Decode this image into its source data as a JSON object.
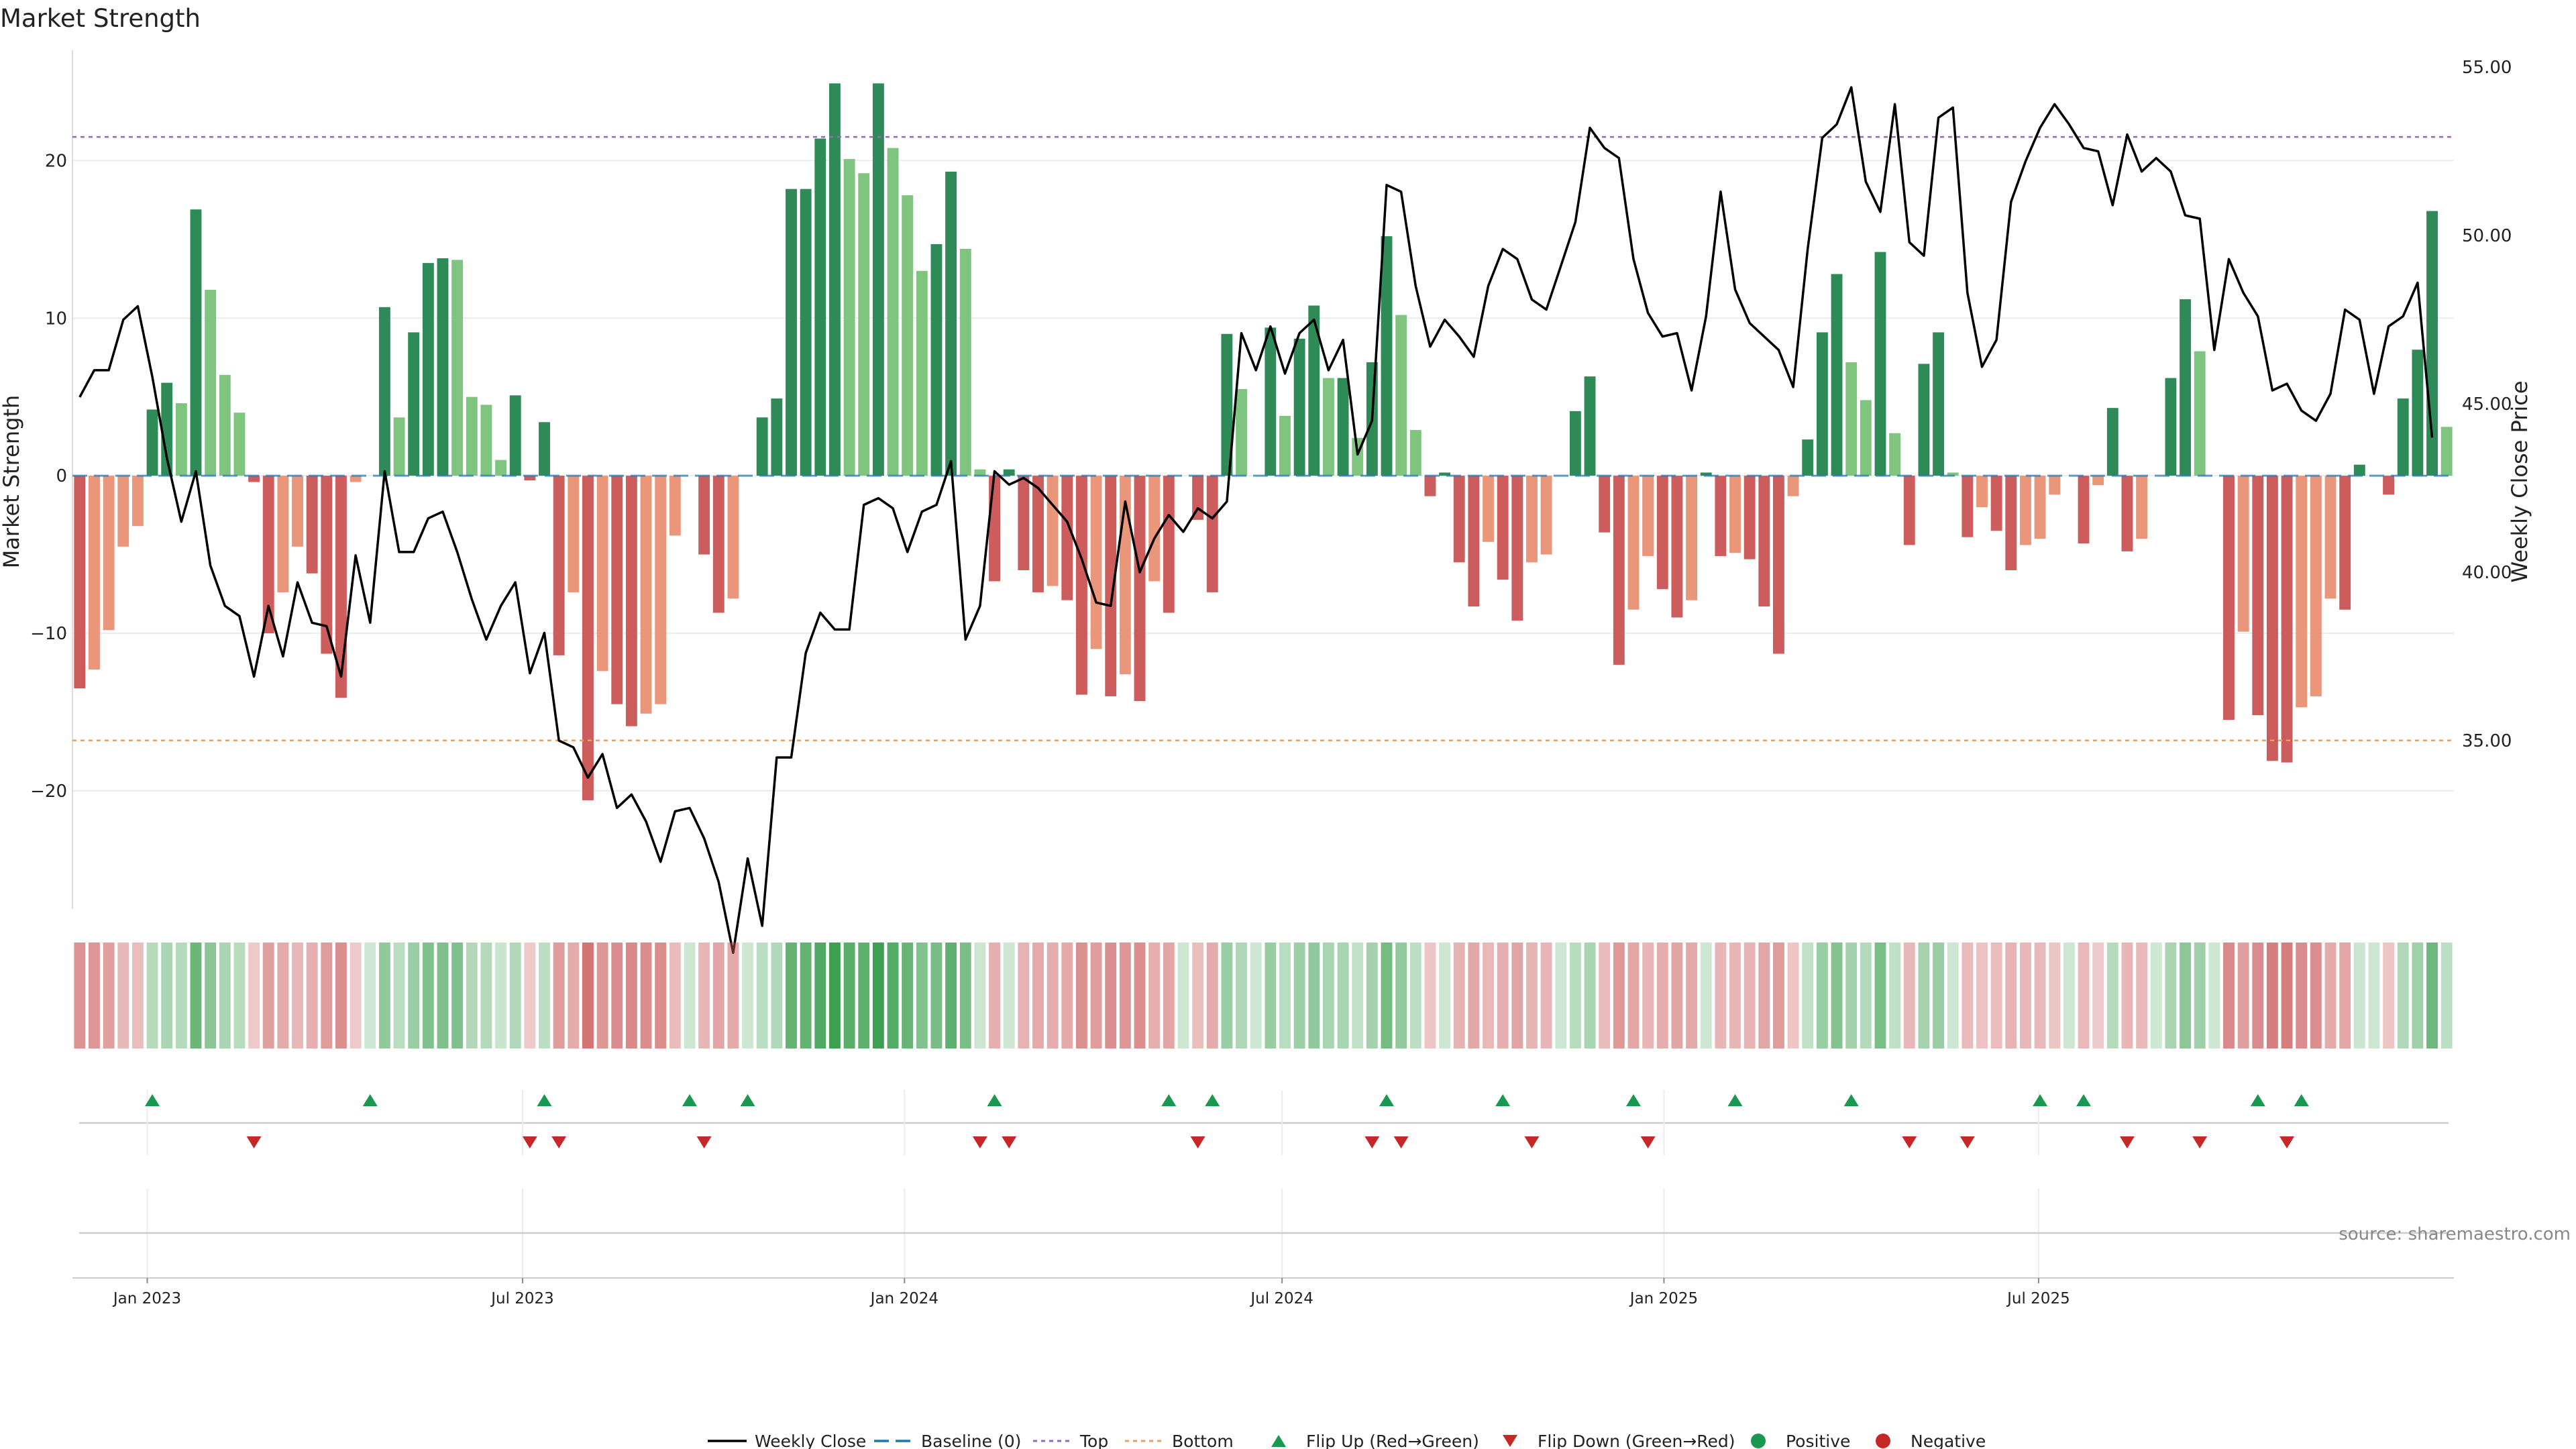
{
  "title": "Market Strength",
  "source": "source: sharemaestro.com",
  "colors": {
    "strong_green": "#2e8b57",
    "light_green": "#7fc47f",
    "strong_red": "#cd5c5c",
    "light_red": "#e9967a",
    "top_line": "#9467bd",
    "bottom_line": "#e8a15e",
    "baseline": "#1f77b4",
    "flip_up": "#1a9850",
    "flip_down": "#c62828",
    "close_line": "#000000"
  },
  "legend": [
    {
      "key": "weekly-close",
      "label": "Weekly Close"
    },
    {
      "key": "baseline",
      "label": "Baseline (0)"
    },
    {
      "key": "top",
      "label": "Top"
    },
    {
      "key": "bottom",
      "label": "Bottom"
    },
    {
      "key": "flip-up",
      "label": "Flip Up (Red→Green)"
    },
    {
      "key": "flip-down",
      "label": "Flip Down (Green→Red)"
    },
    {
      "key": "positive",
      "label": "Positive"
    },
    {
      "key": "negative",
      "label": "Negative"
    }
  ],
  "chart_data": {
    "type": "bar",
    "title": "Market Strength",
    "ylabel": "Market Strength",
    "y2label": "Weekly Close Price",
    "ylim": [
      -27.5,
      27
    ],
    "y2lim": [
      30,
      55.5
    ],
    "yticks": [
      20,
      10,
      0,
      -10,
      -20
    ],
    "y2ticks": [
      "55.00",
      "50.00",
      "45.00",
      "40.00",
      "35.00"
    ],
    "y2tick_values": [
      55,
      50,
      45,
      40,
      35
    ],
    "top_level": 21.5,
    "bottom_level": -16.8,
    "x_start": "2022-11-25",
    "xtick_labels": [
      "Jan 2023",
      "Jul 2023",
      "Jan 2024",
      "Jul 2024",
      "Jan 2025",
      "Jul 2025"
    ],
    "xtick_weeks": [
      5.15,
      31.0,
      57.3,
      83.3,
      109.6,
      135.4
    ],
    "strength": [
      -13.5,
      -12.3,
      -9.8,
      -4.5,
      -3.2,
      4.2,
      5.9,
      4.6,
      16.9,
      11.8,
      6.4,
      4.0,
      -0.4,
      -10.0,
      -7.4,
      -4.5,
      -6.2,
      -11.3,
      -14.1,
      -0.4,
      0.0,
      10.7,
      3.7,
      9.1,
      13.5,
      13.8,
      13.7,
      5.0,
      4.5,
      1.0,
      5.1,
      -0.3,
      3.4,
      -11.4,
      -7.4,
      -20.6,
      -12.4,
      -14.5,
      -15.9,
      -15.1,
      -14.5,
      -3.8,
      0.0,
      -5.0,
      -8.7,
      -7.8,
      0.0,
      3.7,
      4.9,
      18.2,
      18.2,
      21.4,
      24.9,
      20.1,
      19.2,
      24.9,
      20.8,
      17.8,
      13.0,
      14.7,
      19.3,
      14.4,
      0.4,
      -6.7,
      0.4,
      -6.0,
      -7.4,
      -7.0,
      -7.9,
      -13.9,
      -11.0,
      -14.0,
      -12.6,
      -14.3,
      -6.7,
      -8.7,
      0.0,
      -2.8,
      -7.4,
      9.0,
      5.5,
      0.0,
      9.4,
      3.8,
      8.7,
      10.8,
      6.2,
      6.2,
      2.4,
      7.2,
      15.2,
      10.2,
      2.9,
      -1.3,
      0.2,
      -5.5,
      -8.3,
      -4.2,
      -6.6,
      -9.2,
      -5.5,
      -5.0,
      0.0,
      4.1,
      6.3,
      -3.6,
      -12.0,
      -8.5,
      -5.1,
      -7.2,
      -9.0,
      -7.9,
      0.2,
      -5.1,
      -4.9,
      -5.3,
      -8.3,
      -11.3,
      -1.3,
      2.3,
      9.1,
      12.8,
      7.2,
      4.8,
      14.2,
      2.7,
      -4.4,
      7.1,
      9.1,
      0.2,
      -3.9,
      -2.0,
      -3.5,
      -6.0,
      -4.4,
      -4.0,
      -1.2,
      0.0,
      -4.3,
      -0.6,
      4.3,
      -4.8,
      -4.0,
      0.0,
      6.2,
      11.2,
      7.9,
      0.0,
      -15.5,
      -9.9,
      -15.2,
      -18.1,
      -18.2,
      -14.7,
      -14.0,
      -7.8,
      -8.5,
      0.7,
      0.0,
      -1.2,
      4.9,
      8.0,
      16.8,
      3.1
    ],
    "close": [
      45.2,
      46.0,
      46.0,
      47.5,
      47.9,
      45.8,
      43.4,
      41.5,
      43.0,
      40.2,
      39.0,
      38.7,
      36.9,
      39.0,
      37.5,
      39.7,
      38.5,
      38.4,
      36.9,
      40.5,
      38.5,
      43.0,
      40.6,
      40.6,
      41.6,
      41.8,
      40.6,
      39.2,
      38.0,
      39.0,
      39.7,
      37.0,
      38.2,
      35.0,
      34.8,
      33.9,
      34.6,
      33.0,
      33.4,
      32.6,
      31.4,
      32.9,
      33.0,
      32.1,
      30.8,
      28.7,
      31.5,
      29.5,
      34.5,
      34.5,
      37.6,
      38.8,
      38.3,
      38.3,
      42.0,
      42.2,
      41.9,
      40.6,
      41.8,
      42.0,
      43.3,
      38.0,
      39.0,
      43.0,
      42.6,
      42.8,
      42.5,
      42.0,
      41.5,
      40.4,
      39.1,
      39.0,
      42.1,
      40.0,
      41.0,
      41.7,
      41.2,
      41.9,
      41.6,
      42.1,
      47.1,
      46.0,
      47.3,
      45.9,
      47.1,
      47.5,
      46.0,
      46.9,
      43.5,
      44.5,
      51.5,
      51.3,
      48.5,
      46.7,
      47.5,
      47.0,
      46.4,
      48.5,
      49.6,
      49.3,
      48.1,
      47.8,
      49.1,
      50.4,
      53.2,
      52.6,
      52.3,
      49.3,
      47.7,
      47.0,
      47.1,
      45.4,
      47.6,
      51.3,
      48.4,
      47.4,
      47.0,
      46.6,
      45.5,
      49.6,
      52.9,
      53.3,
      54.4,
      51.6,
      50.7,
      53.9,
      49.8,
      49.4,
      53.5,
      53.8,
      48.3,
      46.1,
      46.9,
      51.0,
      52.2,
      53.2,
      53.9,
      53.3,
      52.6,
      52.5,
      50.9,
      53.0,
      51.9,
      52.3,
      51.9,
      50.6,
      50.5,
      46.6,
      49.3,
      48.3,
      47.6,
      45.4,
      45.6,
      44.8,
      44.5,
      45.3,
      47.8,
      47.5,
      45.3,
      47.3,
      47.6,
      48.6,
      44.0
    ],
    "flip_up_weeks": [
      5,
      20,
      32,
      42,
      46,
      63,
      75,
      78,
      90,
      98,
      107,
      114,
      122,
      135,
      138,
      150,
      153
    ],
    "flip_down_weeks": [
      12,
      31,
      33,
      43,
      62,
      64,
      77,
      89,
      91,
      100,
      108,
      126,
      130,
      141,
      146,
      152
    ]
  }
}
